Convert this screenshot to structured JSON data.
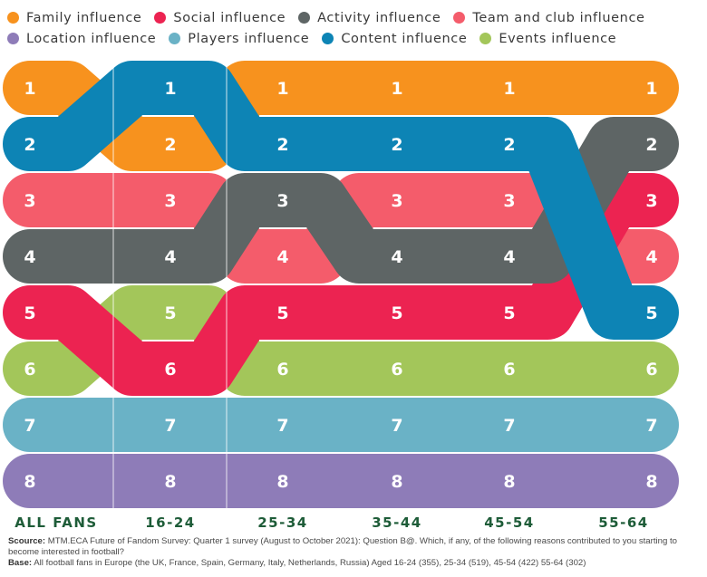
{
  "chart_data": {
    "type": "bump",
    "categories": [
      "ALL FANS",
      "16-24",
      "25-34",
      "35-44",
      "45-54",
      "55-64"
    ],
    "series": [
      {
        "name": "Family influence",
        "color": "#f7921e",
        "ranks": [
          1,
          2,
          1,
          1,
          1,
          1
        ]
      },
      {
        "name": "Social influence",
        "color": "#ec2351",
        "ranks": [
          5,
          6,
          5,
          5,
          5,
          3
        ]
      },
      {
        "name": "Activity influence",
        "color": "#5e6565",
        "ranks": [
          4,
          4,
          3,
          4,
          4,
          2
        ]
      },
      {
        "name": "Team and club influence",
        "color": "#f45c6b",
        "ranks": [
          3,
          3,
          4,
          3,
          3,
          4
        ]
      },
      {
        "name": "Location influence",
        "color": "#8e7cb8",
        "ranks": [
          8,
          8,
          8,
          8,
          8,
          8
        ]
      },
      {
        "name": "Players influence",
        "color": "#6ab2c6",
        "ranks": [
          7,
          7,
          7,
          7,
          7,
          7
        ]
      },
      {
        "name": "Content influence",
        "color": "#0d84b5",
        "ranks": [
          2,
          1,
          2,
          2,
          2,
          5
        ]
      },
      {
        "name": "Events influence",
        "color": "#a3c65a",
        "ranks": [
          6,
          5,
          6,
          6,
          6,
          6
        ]
      }
    ],
    "ylim": [
      1,
      8
    ],
    "legend_position": "top",
    "category_label_color": "#1e5c38"
  },
  "legend_rows": [
    [
      0,
      1,
      2,
      3
    ],
    [
      4,
      5,
      6,
      7
    ]
  ],
  "source": {
    "source_label": "Scource:",
    "source_text": " MTM.ECA Future of Fandom Survey: Quarter 1 survey (August to October 2021): Question B@. Which, if any, of the following reasons contributed to you starting to become interested in football?",
    "base_label": "Base:",
    "base_text": " All football fans in Europe (the UK, France, Spain, Germany, Italy, Netherlands, Russia) Aged 16-24 (355), 25-34 (519), 45-54 (422) 55-64 (302)"
  }
}
